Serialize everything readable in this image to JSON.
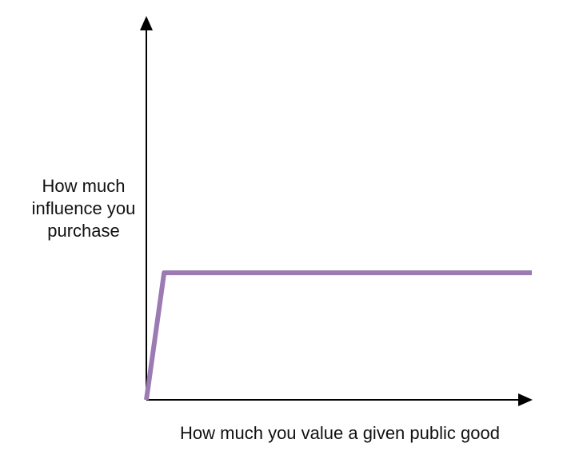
{
  "chart_data": {
    "type": "line",
    "title": "",
    "xlabel": "How much you value a given public good",
    "ylabel": [
      "How much",
      "influence you",
      "purchase"
    ],
    "xlim": [
      0,
      100
    ],
    "ylim": [
      0,
      100
    ],
    "grid": false,
    "axis_ticks": false,
    "series": [
      {
        "color": "#9b7bb2",
        "x": [
          0,
          4.6,
          100
        ],
        "y": [
          0,
          33.1,
          33.1
        ]
      }
    ]
  }
}
